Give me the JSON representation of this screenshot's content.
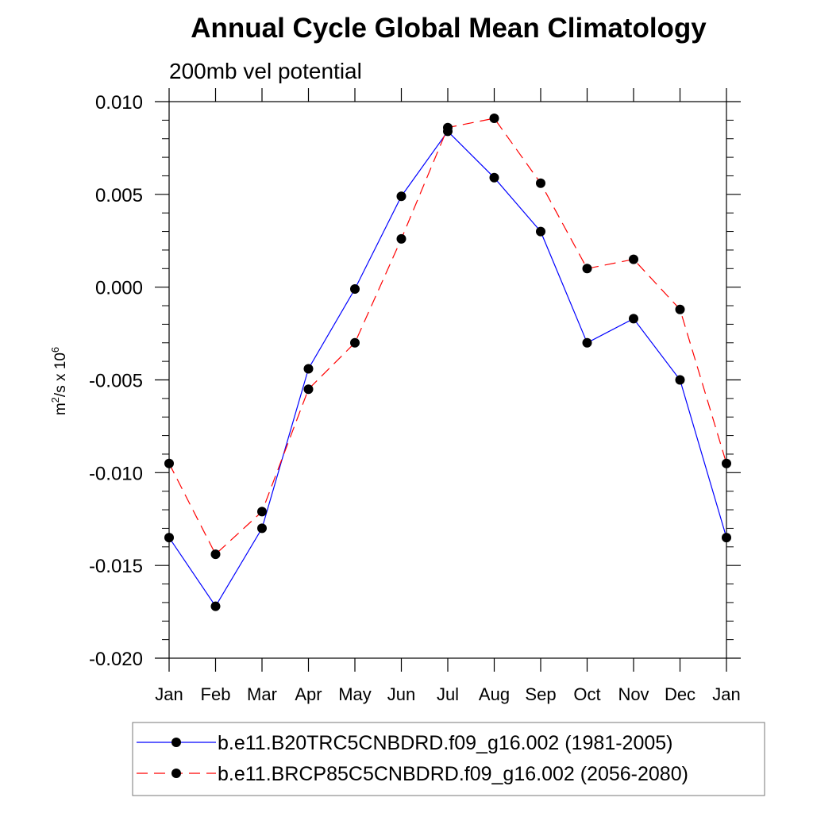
{
  "chart_data": {
    "type": "line",
    "title": "Annual Cycle Global Mean Climatology",
    "subtitle": "200mb vel potential",
    "ylabel": "m2/s x 10^6",
    "ylabel_parts": {
      "m": "m",
      "exp2": "2",
      "mid": "/s x 10",
      "exp6": "6"
    },
    "xlabel": "",
    "categories": [
      "Jan",
      "Feb",
      "Mar",
      "Apr",
      "May",
      "Jun",
      "Jul",
      "Aug",
      "Sep",
      "Oct",
      "Nov",
      "Dec",
      "Jan"
    ],
    "ylim": [
      -0.02,
      0.01
    ],
    "yticks": [
      0.01,
      0.005,
      0.0,
      -0.005,
      -0.01,
      -0.015,
      -0.02
    ],
    "ytick_labels": [
      "0.010",
      "0.005",
      "0.000",
      "-0.005",
      "-0.010",
      "-0.015",
      "-0.020"
    ],
    "grid": false,
    "legend_position": "bottom",
    "series": [
      {
        "name": "b.e11.B20TRC5CNBDRD.f09_g16.002 (1981-2005)",
        "color": "#0000ff",
        "dash": "solid",
        "values": [
          -0.0135,
          -0.0172,
          -0.013,
          -0.0044,
          -0.0001,
          0.0049,
          0.0084,
          0.0059,
          0.003,
          -0.003,
          -0.0017,
          -0.005,
          -0.0135
        ]
      },
      {
        "name": "b.e11.BRCP85C5CNBDRD.f09_g16.002 (2056-2080)",
        "color": "#ff0000",
        "dash": "dashed",
        "values": [
          -0.0095,
          -0.0144,
          -0.0121,
          -0.0055,
          -0.003,
          0.0026,
          0.0086,
          0.0091,
          0.0056,
          0.001,
          0.0015,
          -0.0012,
          -0.0095
        ]
      }
    ]
  }
}
